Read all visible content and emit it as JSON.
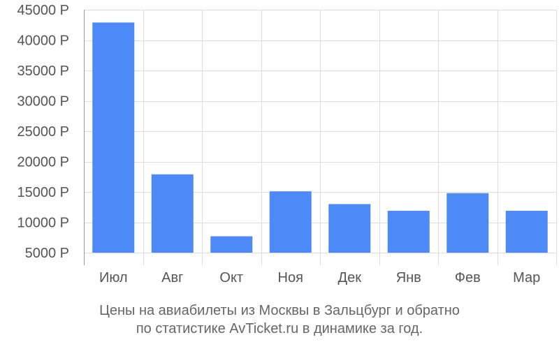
{
  "chart_data": {
    "type": "bar",
    "categories": [
      "Июл",
      "Авг",
      "Окт",
      "Ноя",
      "Дек",
      "Янв",
      "Фев",
      "Мар"
    ],
    "values": [
      42900,
      17900,
      7700,
      15100,
      13000,
      11900,
      14800,
      11900
    ],
    "ylim": [
      5000,
      45000
    ],
    "yticks": [
      5000,
      10000,
      15000,
      20000,
      25000,
      30000,
      35000,
      40000,
      45000
    ],
    "ytick_labels": [
      "5000 Р",
      "10000 Р",
      "15000 Р",
      "20000 Р",
      "25000 Р",
      "30000 Р",
      "35000 Р",
      "40000 Р",
      "45000 Р"
    ],
    "bar_color": "#4d8af8",
    "grid_color": "#dddddd",
    "grid": true,
    "legend": "none"
  },
  "caption": {
    "line1": "Цены на авиабилеты из Москвы в Зальцбург и обратно",
    "line2": "по статистике AvTicket.ru в динамике за год."
  }
}
